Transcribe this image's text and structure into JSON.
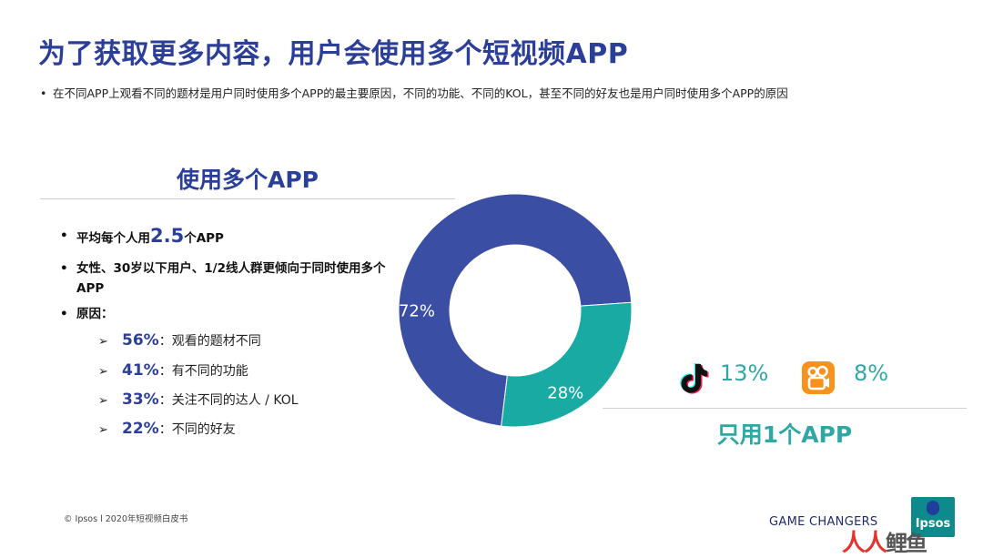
{
  "title": "为了获取更多内容，用户会使用多个短视频APP",
  "subtitle": "在不同APP上观看不同的题材是用户同时使用多个APP的最主要原因，不同的功能、不同的KOL，甚至不同的好友也是用户同时使用多个APP的原因",
  "bullet_char": "•",
  "multi_app": {
    "heading": "使用多个APP",
    "avg_prefix": "平均每个人用",
    "avg_value": "2.5",
    "avg_suffix": "个APP",
    "demographic": "女性、30岁以下用户、1/2线人群更倾向于同时使用多个APP",
    "reasons_label": "原因：",
    "arrow": "➢",
    "reasons": [
      {
        "pct": "56%",
        "text": "：观看的题材不同"
      },
      {
        "pct": "41%",
        "text": "：有不同的功能"
      },
      {
        "pct": "33%",
        "text": "：关注不同的达人 / KOL"
      },
      {
        "pct": "22%",
        "text": "：不同的好友"
      }
    ]
  },
  "chart_data": {
    "type": "pie",
    "donut": true,
    "categories": [
      "使用多个APP",
      "只用1个APP"
    ],
    "values": [
      72,
      28
    ],
    "labels": [
      "72%",
      "28%"
    ],
    "colors": [
      "#3a4ea4",
      "#18aaa3"
    ]
  },
  "single_app": {
    "heading": "只用1个APP",
    "apps": [
      {
        "icon": "tiktok-icon",
        "pct": "13%"
      },
      {
        "icon": "kuaishou-icon",
        "pct": "8%"
      }
    ]
  },
  "footer": {
    "left": "© Ipsos l 2020年短视频白皮书",
    "right": "GAME CHANGERS",
    "logo": "Ipsos",
    "watermark_a": "人人",
    "watermark_b": "鲤鱼"
  },
  "colors": {
    "primary": "#2b3f99",
    "teal": "#2fa7a5"
  }
}
